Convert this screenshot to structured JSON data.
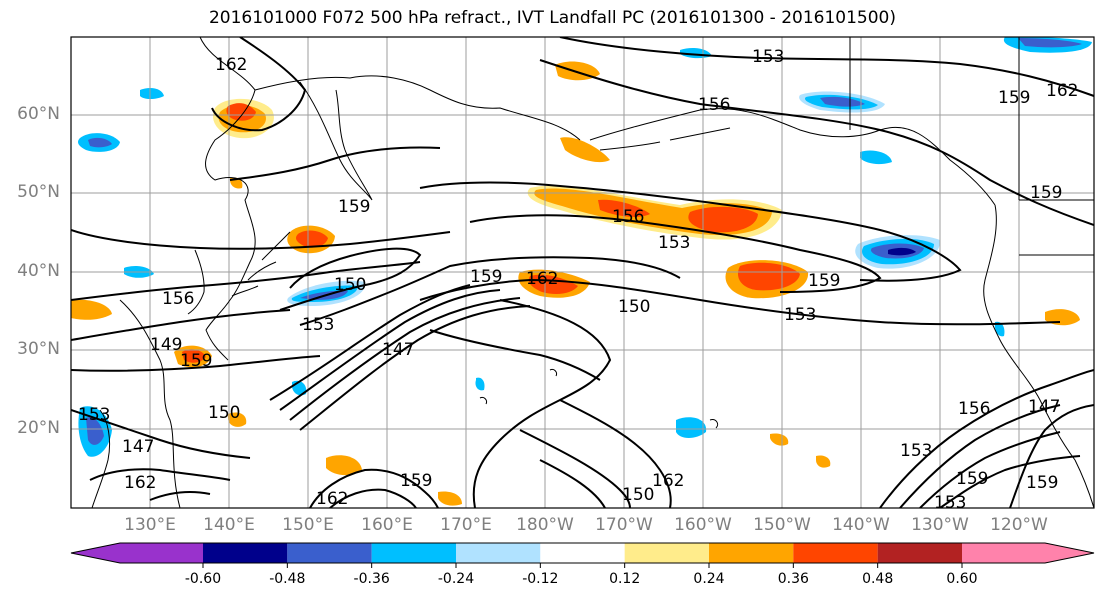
{
  "title": "2016101000 F072 500 hPa refract., IVT Landfall PC (2016101300 - 2016101500)",
  "lat_labels": [
    "60°N",
    "50°N",
    "40°N",
    "30°N",
    "20°N"
  ],
  "lon_labels": [
    "130°E",
    "140°E",
    "150°E",
    "160°E",
    "170°E",
    "180°W",
    "170°W",
    "160°W",
    "150°W",
    "140°W",
    "130°W",
    "120°W"
  ],
  "contour_labels": [
    "162",
    "153",
    "156",
    "159",
    "162",
    "159",
    "159",
    "156",
    "153",
    "159",
    "156",
    "150",
    "153",
    "159",
    "162",
    "150",
    "159",
    "153",
    "153",
    "147",
    "150",
    "147",
    "162",
    "159",
    "162",
    "150",
    "153",
    "156",
    "159",
    "147",
    "159",
    "162",
    "153",
    "149"
  ],
  "colorbar": {
    "colors": [
      "#9932cc",
      "#00008b",
      "#3a5fcd",
      "#00bfff",
      "#b0e2ff",
      "#ffffff",
      "#ffec8b",
      "#ffa500",
      "#ff4500",
      "#b22222",
      "#ff82ab"
    ],
    "tick_labels": [
      "-0.60",
      "-0.48",
      "-0.36",
      "-0.24",
      "-0.12",
      "0.12",
      "0.24",
      "0.36",
      "0.48",
      "0.60"
    ]
  }
}
